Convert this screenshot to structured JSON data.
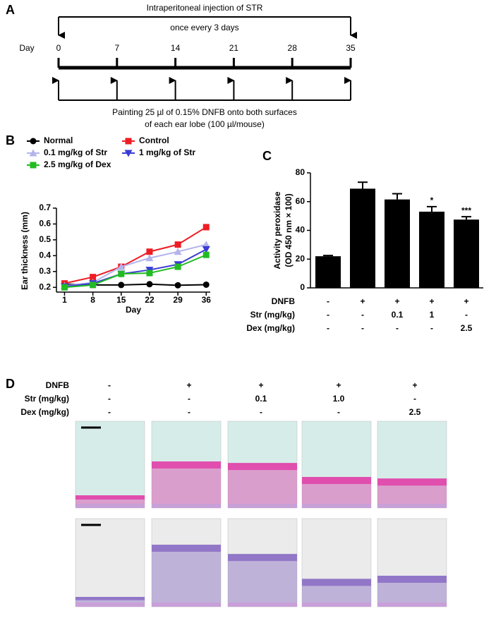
{
  "panel_labels": [
    "A",
    "B",
    "C",
    "D"
  ],
  "panel_a": {
    "top_text": "Intraperitoneal injection of STR",
    "interval_text": "once every 3 days",
    "day_label": "Day",
    "days": [
      0,
      7,
      14,
      21,
      28,
      35
    ],
    "bottom_text": [
      "Painting 25 µl of 0.15% DNFB onto both surfaces",
      "of each ear lobe (100 µl/mouse)"
    ]
  },
  "chart_data": [
    {
      "type": "line",
      "x_label": "Day",
      "y_label": "Ear thickness (mm)",
      "x": [
        1,
        8,
        15,
        22,
        29,
        36
      ],
      "xlim": [
        -1,
        37
      ],
      "xticks": [
        1,
        8,
        15,
        22,
        29,
        36
      ],
      "ylim": [
        0.17,
        0.7
      ],
      "yticks": [
        0.2,
        0.3,
        0.4,
        0.5,
        0.6,
        0.7
      ],
      "series": [
        {
          "name": "Normal",
          "color": "#000000",
          "marker": "circle",
          "values": [
            0.22,
            0.215,
            0.215,
            0.22,
            0.213,
            0.217
          ]
        },
        {
          "name": "Control",
          "color": "#ee1c24",
          "marker": "square",
          "values": [
            0.225,
            0.265,
            0.33,
            0.425,
            0.47,
            0.58
          ]
        },
        {
          "name": "0.1 mg/kg of Str",
          "color": "#b4b4ec",
          "marker": "triangle-up",
          "values": [
            0.21,
            0.23,
            0.33,
            0.385,
            0.425,
            0.47
          ]
        },
        {
          "name": "1 mg/kg of Str",
          "color": "#3a3ad4",
          "marker": "triangle-down",
          "values": [
            0.205,
            0.225,
            0.285,
            0.31,
            0.345,
            0.44
          ]
        },
        {
          "name": "2.5 mg/kg of Dex",
          "color": "#22bb22",
          "marker": "square",
          "values": [
            0.2,
            0.215,
            0.285,
            0.29,
            0.33,
            0.405
          ]
        }
      ]
    },
    {
      "type": "bar",
      "y_label": [
        "Activity peroxidase",
        "(OD 450 nm × 100)"
      ],
      "color": "#000000",
      "values": [
        22,
        69,
        61.5,
        53,
        47.5
      ],
      "errors": [
        0.5,
        4.5,
        4,
        3.5,
        2
      ],
      "significance": [
        null,
        null,
        null,
        "*",
        "***"
      ],
      "ylim": [
        0,
        80
      ],
      "yticks": [
        0,
        20,
        40,
        60,
        80
      ],
      "table": [
        {
          "label": "DNFB",
          "cells": [
            "-",
            "+",
            "+",
            "+",
            "+"
          ]
        },
        {
          "label": "Str (mg/kg)",
          "cells": [
            "-",
            "-",
            "0.1",
            "1",
            "-"
          ]
        },
        {
          "label": "Dex (mg/kg)",
          "cells": [
            "-",
            "-",
            "-",
            "-",
            "2.5"
          ]
        }
      ]
    }
  ],
  "panel_d": {
    "rows": [
      {
        "label": "DNFB",
        "cells": [
          "-",
          "+",
          "+",
          "+",
          "+"
        ]
      },
      {
        "label": "Str (mg/kg)",
        "cells": [
          "-",
          "-",
          "0.1",
          "1.0",
          "-"
        ]
      },
      {
        "label": "Dex (mg/kg)",
        "cells": [
          "-",
          "-",
          "-",
          "-",
          "2.5"
        ]
      }
    ]
  }
}
